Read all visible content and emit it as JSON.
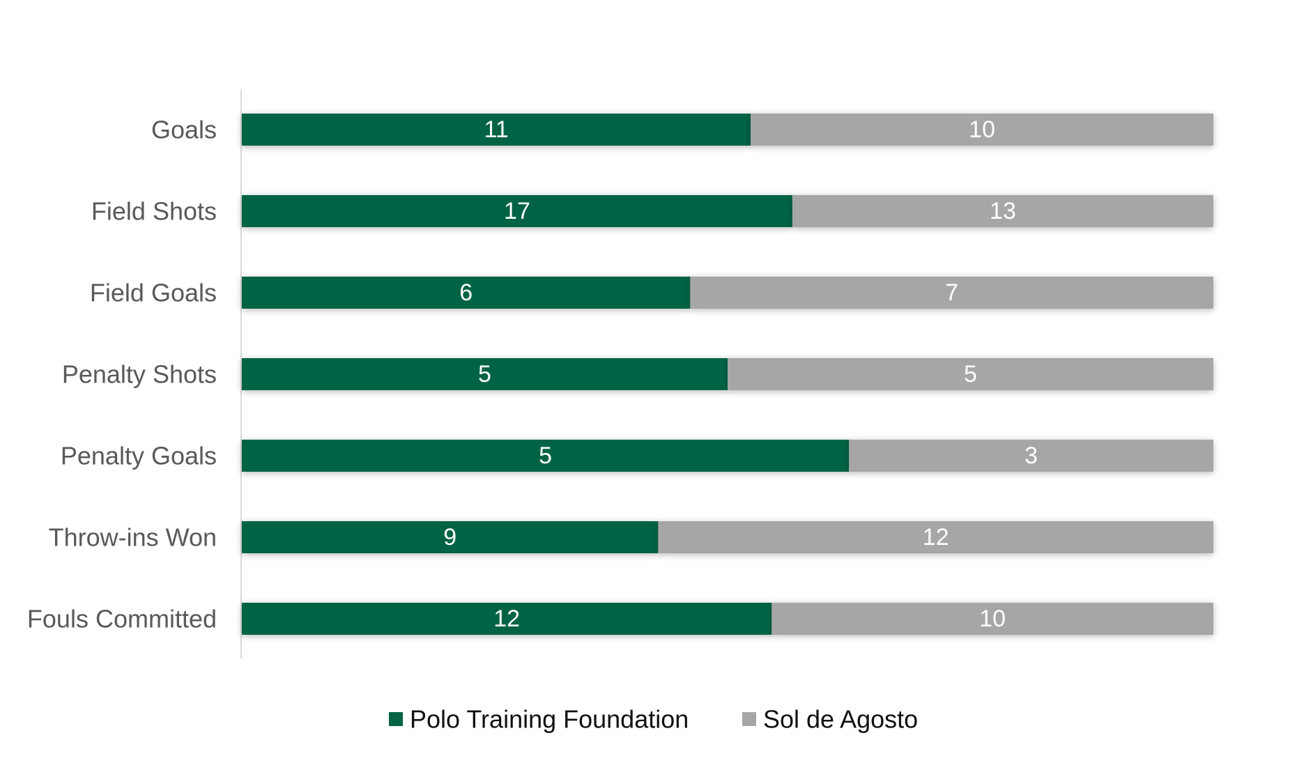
{
  "chart_data": {
    "type": "bar",
    "orientation": "horizontal",
    "stacked": "100%",
    "categories": [
      "Goals",
      "Field Shots",
      "Field Goals",
      "Penalty Shots",
      "Penalty Goals",
      "Throw-ins Won",
      "Fouls Committed"
    ],
    "series": [
      {
        "name": "Polo Training Foundation",
        "values": [
          11,
          17,
          6,
          5,
          5,
          9,
          12
        ],
        "color": "#066345"
      },
      {
        "name": "Sol de Agosto",
        "values": [
          10,
          13,
          7,
          5,
          3,
          12,
          10
        ],
        "color": "#a6a6a6"
      }
    ],
    "title": "",
    "xlabel": "",
    "ylabel": "",
    "grid": false,
    "legend": "bottom"
  }
}
